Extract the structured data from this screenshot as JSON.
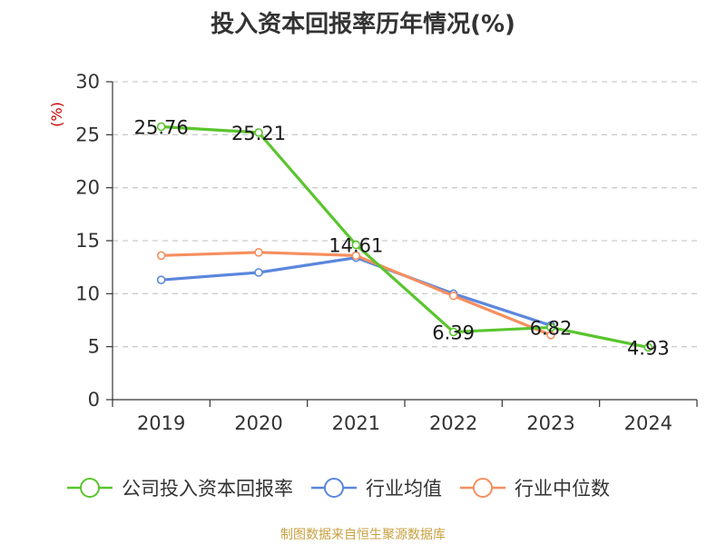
{
  "chart_data": {
    "type": "line",
    "title": "投入资本回报率历年情况(%)",
    "y_unit": "(%)",
    "categories": [
      "2019",
      "2020",
      "2021",
      "2022",
      "2023",
      "2024"
    ],
    "ylim": [
      0,
      30
    ],
    "yticks": [
      0,
      5,
      10,
      15,
      20,
      25,
      30
    ],
    "grid": true,
    "legend_position": "bottom",
    "series": [
      {
        "name": "公司投入资本回报率",
        "color": "#5ac52e",
        "values": [
          25.76,
          25.21,
          14.61,
          6.39,
          6.82,
          4.93
        ],
        "labels": [
          "25.76",
          "25.21",
          "14.61",
          "6.39",
          "6.82",
          "4.93"
        ]
      },
      {
        "name": "行业均值",
        "color": "#5b87dd",
        "values": [
          11.3,
          12.0,
          13.4,
          10.0,
          7.0,
          null
        ]
      },
      {
        "name": "行业中位数",
        "color": "#f58f5f",
        "values": [
          13.6,
          13.9,
          13.6,
          9.8,
          6.1,
          null
        ]
      }
    ]
  },
  "source": "制图数据来自恒生聚源数据库"
}
